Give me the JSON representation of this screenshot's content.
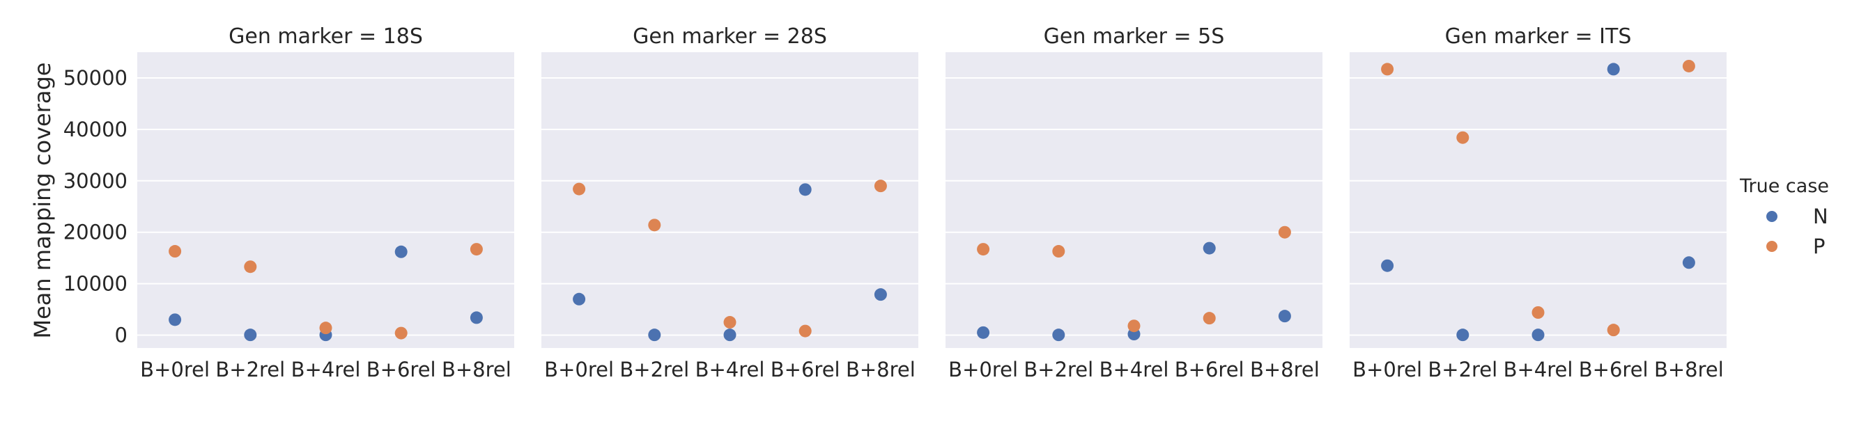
{
  "ylabel": "Mean mapping coverage",
  "legend": {
    "title": "True case",
    "placement": "right",
    "entries": [
      {
        "name": "N",
        "color": "#4c72b0"
      },
      {
        "name": "P",
        "color": "#dd8452"
      }
    ]
  },
  "chart_data": [
    {
      "type": "scatter",
      "title": "Gen marker = 18S",
      "categories": [
        "B+0rel",
        "B+2rel",
        "B+4rel",
        "B+6rel",
        "B+8rel"
      ],
      "series": [
        {
          "name": "N",
          "color": "#4c72b0",
          "values": [
            3000,
            50,
            50,
            16200,
            3400
          ]
        },
        {
          "name": "P",
          "color": "#dd8452",
          "values": [
            16300,
            13300,
            1400,
            400,
            16700
          ]
        }
      ],
      "ylim": [
        -2500,
        55000
      ],
      "yticks": [
        0,
        10000,
        20000,
        30000,
        40000,
        50000
      ],
      "grid": true
    },
    {
      "type": "scatter",
      "title": "Gen marker = 28S",
      "categories": [
        "B+0rel",
        "B+2rel",
        "B+4rel",
        "B+6rel",
        "B+8rel"
      ],
      "series": [
        {
          "name": "N",
          "color": "#4c72b0",
          "values": [
            7000,
            50,
            50,
            28300,
            7900
          ]
        },
        {
          "name": "P",
          "color": "#dd8452",
          "values": [
            28400,
            21400,
            2500,
            800,
            29000
          ]
        }
      ],
      "ylim": [
        -2500,
        55000
      ],
      "yticks": [
        0,
        10000,
        20000,
        30000,
        40000,
        50000
      ],
      "grid": true
    },
    {
      "type": "scatter",
      "title": "Gen marker = 5S",
      "categories": [
        "B+0rel",
        "B+2rel",
        "B+4rel",
        "B+6rel",
        "B+8rel"
      ],
      "series": [
        {
          "name": "N",
          "color": "#4c72b0",
          "values": [
            500,
            50,
            200,
            16900,
            3700
          ]
        },
        {
          "name": "P",
          "color": "#dd8452",
          "values": [
            16700,
            16300,
            1800,
            3300,
            20000
          ]
        }
      ],
      "ylim": [
        -2500,
        55000
      ],
      "yticks": [
        0,
        10000,
        20000,
        30000,
        40000,
        50000
      ],
      "grid": true
    },
    {
      "type": "scatter",
      "title": "Gen marker = ITS",
      "categories": [
        "B+0rel",
        "B+2rel",
        "B+4rel",
        "B+6rel",
        "B+8rel"
      ],
      "series": [
        {
          "name": "N",
          "color": "#4c72b0",
          "values": [
            13500,
            50,
            50,
            51700,
            14100
          ]
        },
        {
          "name": "P",
          "color": "#dd8452",
          "values": [
            51700,
            38400,
            4400,
            1000,
            52300
          ]
        }
      ],
      "ylim": [
        -2500,
        55000
      ],
      "yticks": [
        0,
        10000,
        20000,
        30000,
        40000,
        50000
      ],
      "grid": true
    }
  ]
}
